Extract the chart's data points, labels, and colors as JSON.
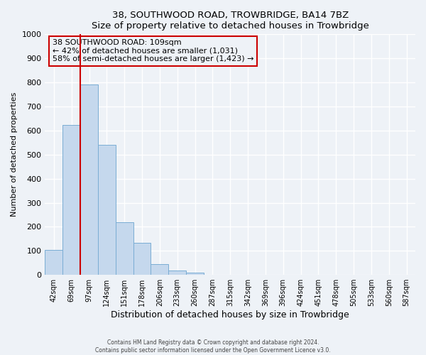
{
  "title": "38, SOUTHWOOD ROAD, TROWBRIDGE, BA14 7BZ",
  "subtitle": "Size of property relative to detached houses in Trowbridge",
  "xlabel": "Distribution of detached houses by size in Trowbridge",
  "ylabel": "Number of detached properties",
  "bar_labels": [
    "42sqm",
    "69sqm",
    "97sqm",
    "124sqm",
    "151sqm",
    "178sqm",
    "206sqm",
    "233sqm",
    "260sqm",
    "287sqm",
    "315sqm",
    "342sqm",
    "369sqm",
    "396sqm",
    "424sqm",
    "451sqm",
    "478sqm",
    "505sqm",
    "533sqm",
    "560sqm",
    "587sqm"
  ],
  "bar_values": [
    103,
    623,
    790,
    540,
    220,
    133,
    45,
    18,
    10,
    0,
    0,
    0,
    0,
    0,
    0,
    0,
    0,
    0,
    0,
    0,
    0
  ],
  "bar_color": "#c5d8ed",
  "bar_edge_color": "#7aadd4",
  "vline_x_index": 2,
  "vline_color": "#cc0000",
  "ylim": [
    0,
    1000
  ],
  "yticks": [
    0,
    100,
    200,
    300,
    400,
    500,
    600,
    700,
    800,
    900,
    1000
  ],
  "annotation_title": "38 SOUTHWOOD ROAD: 109sqm",
  "annotation_line2": "← 42% of detached houses are smaller (1,031)",
  "annotation_line3": "58% of semi-detached houses are larger (1,423) →",
  "annotation_box_color": "#cc0000",
  "footer_line1": "Contains HM Land Registry data © Crown copyright and database right 2024.",
  "footer_line2": "Contains public sector information licensed under the Open Government Licence v3.0.",
  "bg_color": "#eef2f7",
  "grid_color": "#ffffff"
}
